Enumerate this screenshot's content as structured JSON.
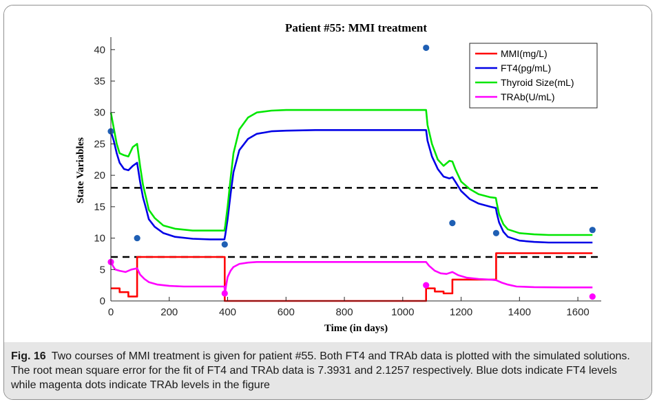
{
  "chart_data": {
    "type": "line",
    "title": "Patient #55: MMI treatment",
    "xlabel": "Time (in days)",
    "ylabel": "State Variables",
    "xlim": [
      0,
      1680
    ],
    "ylim": [
      0,
      42
    ],
    "xticks": [
      0,
      200,
      400,
      600,
      800,
      1000,
      1200,
      1400,
      1600
    ],
    "yticks": [
      0,
      5,
      10,
      15,
      20,
      25,
      30,
      35,
      40
    ],
    "legend_position": "top-right",
    "series": [
      {
        "name": "MMI(mg/L)",
        "color": "#ff0000",
        "x": [
          0,
          0,
          30,
          30,
          60,
          60,
          90,
          90,
          390,
          390,
          1080,
          1080,
          1110,
          1110,
          1140,
          1140,
          1170,
          1170,
          1320,
          1320,
          1650
        ],
        "y": [
          2.0,
          2.0,
          2.0,
          1.4,
          1.4,
          0.7,
          0.7,
          7.0,
          7.0,
          0.0,
          0.0,
          2.0,
          2.0,
          1.5,
          1.5,
          1.2,
          1.2,
          3.4,
          3.4,
          7.6,
          7.6
        ]
      },
      {
        "name": "FT4(pg/mL)",
        "color": "#0000e6",
        "x": [
          0,
          10,
          20,
          30,
          45,
          60,
          75,
          90,
          100,
          110,
          120,
          130,
          150,
          180,
          220,
          280,
          340,
          389,
          392,
          400,
          410,
          420,
          440,
          470,
          500,
          550,
          600,
          700,
          800,
          900,
          1000,
          1080,
          1085,
          1100,
          1120,
          1140,
          1160,
          1170,
          1180,
          1200,
          1230,
          1260,
          1300,
          1319,
          1322,
          1330,
          1345,
          1360,
          1400,
          1450,
          1500,
          1650
        ],
        "y": [
          27.0,
          25.5,
          23.5,
          22.0,
          21.0,
          20.8,
          21.5,
          22.0,
          19.0,
          16.5,
          14.8,
          13.0,
          11.8,
          10.8,
          10.2,
          9.9,
          9.8,
          9.8,
          10.5,
          13.0,
          17.0,
          20.5,
          24.0,
          25.8,
          26.6,
          27.0,
          27.1,
          27.2,
          27.2,
          27.2,
          27.2,
          27.2,
          25.5,
          23.0,
          21.0,
          19.8,
          19.5,
          19.7,
          19.0,
          17.5,
          16.2,
          15.5,
          15.0,
          14.8,
          14.0,
          12.5,
          11.0,
          10.2,
          9.6,
          9.4,
          9.3,
          9.3
        ]
      },
      {
        "name": "Thyroid Size(mL)",
        "color": "#00e600",
        "x": [
          0,
          10,
          20,
          30,
          45,
          60,
          75,
          90,
          100,
          110,
          120,
          130,
          150,
          180,
          220,
          280,
          340,
          389,
          392,
          400,
          410,
          420,
          440,
          470,
          500,
          550,
          600,
          700,
          800,
          900,
          1000,
          1080,
          1085,
          1100,
          1120,
          1140,
          1160,
          1170,
          1180,
          1200,
          1230,
          1260,
          1300,
          1319,
          1322,
          1330,
          1345,
          1360,
          1400,
          1450,
          1500,
          1650
        ],
        "y": [
          30.0,
          27.5,
          25.0,
          23.5,
          23.2,
          23.0,
          24.5,
          25.0,
          21.5,
          18.5,
          16.5,
          14.5,
          13.2,
          12.0,
          11.5,
          11.2,
          11.2,
          11.2,
          12.0,
          15.0,
          19.5,
          23.5,
          27.3,
          29.2,
          30.0,
          30.3,
          30.4,
          30.4,
          30.4,
          30.4,
          30.4,
          30.4,
          28.0,
          25.0,
          22.5,
          21.5,
          22.3,
          22.2,
          21.0,
          19.0,
          17.8,
          17.0,
          16.5,
          16.4,
          15.6,
          13.8,
          12.2,
          11.4,
          10.8,
          10.6,
          10.5,
          10.5
        ]
      },
      {
        "name": "TRAb(U/mL)",
        "color": "#ff00ff",
        "x": [
          0,
          8,
          15,
          30,
          50,
          70,
          90,
          100,
          115,
          130,
          160,
          200,
          250,
          300,
          389,
          391,
          395,
          400,
          410,
          420,
          440,
          470,
          500,
          550,
          600,
          800,
          1000,
          1080,
          1090,
          1110,
          1130,
          1150,
          1170,
          1190,
          1220,
          1260,
          1300,
          1320,
          1340,
          1360,
          1390,
          1450,
          1550,
          1650
        ],
        "y": [
          6.2,
          5.5,
          5.0,
          4.8,
          4.6,
          5.0,
          5.2,
          4.2,
          3.5,
          3.0,
          2.6,
          2.4,
          2.3,
          2.3,
          2.3,
          1.2,
          2.5,
          3.8,
          4.8,
          5.4,
          5.9,
          6.1,
          6.2,
          6.2,
          6.2,
          6.2,
          6.2,
          6.2,
          5.6,
          4.8,
          4.4,
          4.3,
          4.6,
          4.1,
          3.7,
          3.5,
          3.4,
          3.3,
          2.9,
          2.6,
          2.3,
          2.2,
          2.15,
          2.15
        ]
      }
    ],
    "data_points": [
      {
        "type": "FT4",
        "color": "#1f5fb4",
        "points": [
          [
            0,
            27.0
          ],
          [
            90,
            10.0
          ],
          [
            390,
            9.0
          ],
          [
            1080,
            40.3
          ],
          [
            1170,
            12.4
          ],
          [
            1320,
            10.8
          ],
          [
            1650,
            11.3
          ]
        ]
      },
      {
        "type": "TRAb",
        "color": "#ff00ff",
        "points": [
          [
            0,
            6.2
          ],
          [
            390,
            1.2
          ],
          [
            1080,
            2.5
          ],
          [
            1650,
            0.7
          ]
        ]
      }
    ],
    "reference_lines": [
      {
        "y": 18,
        "style": "dashed",
        "color": "#000000"
      },
      {
        "y": 7,
        "style": "dashed",
        "color": "#000000"
      }
    ]
  },
  "caption": {
    "label": "Fig. 16",
    "text": "Two courses of MMI treatment is given for patient #55. Both FT4 and TRAb data is plotted with the simulated solutions. The root mean square error for the fit of FT4 and TRAb data is 7.3931 and 2.1257 respectively. Blue dots indicate FT4 levels while magenta dots indicate TRAb levels in the figure"
  }
}
